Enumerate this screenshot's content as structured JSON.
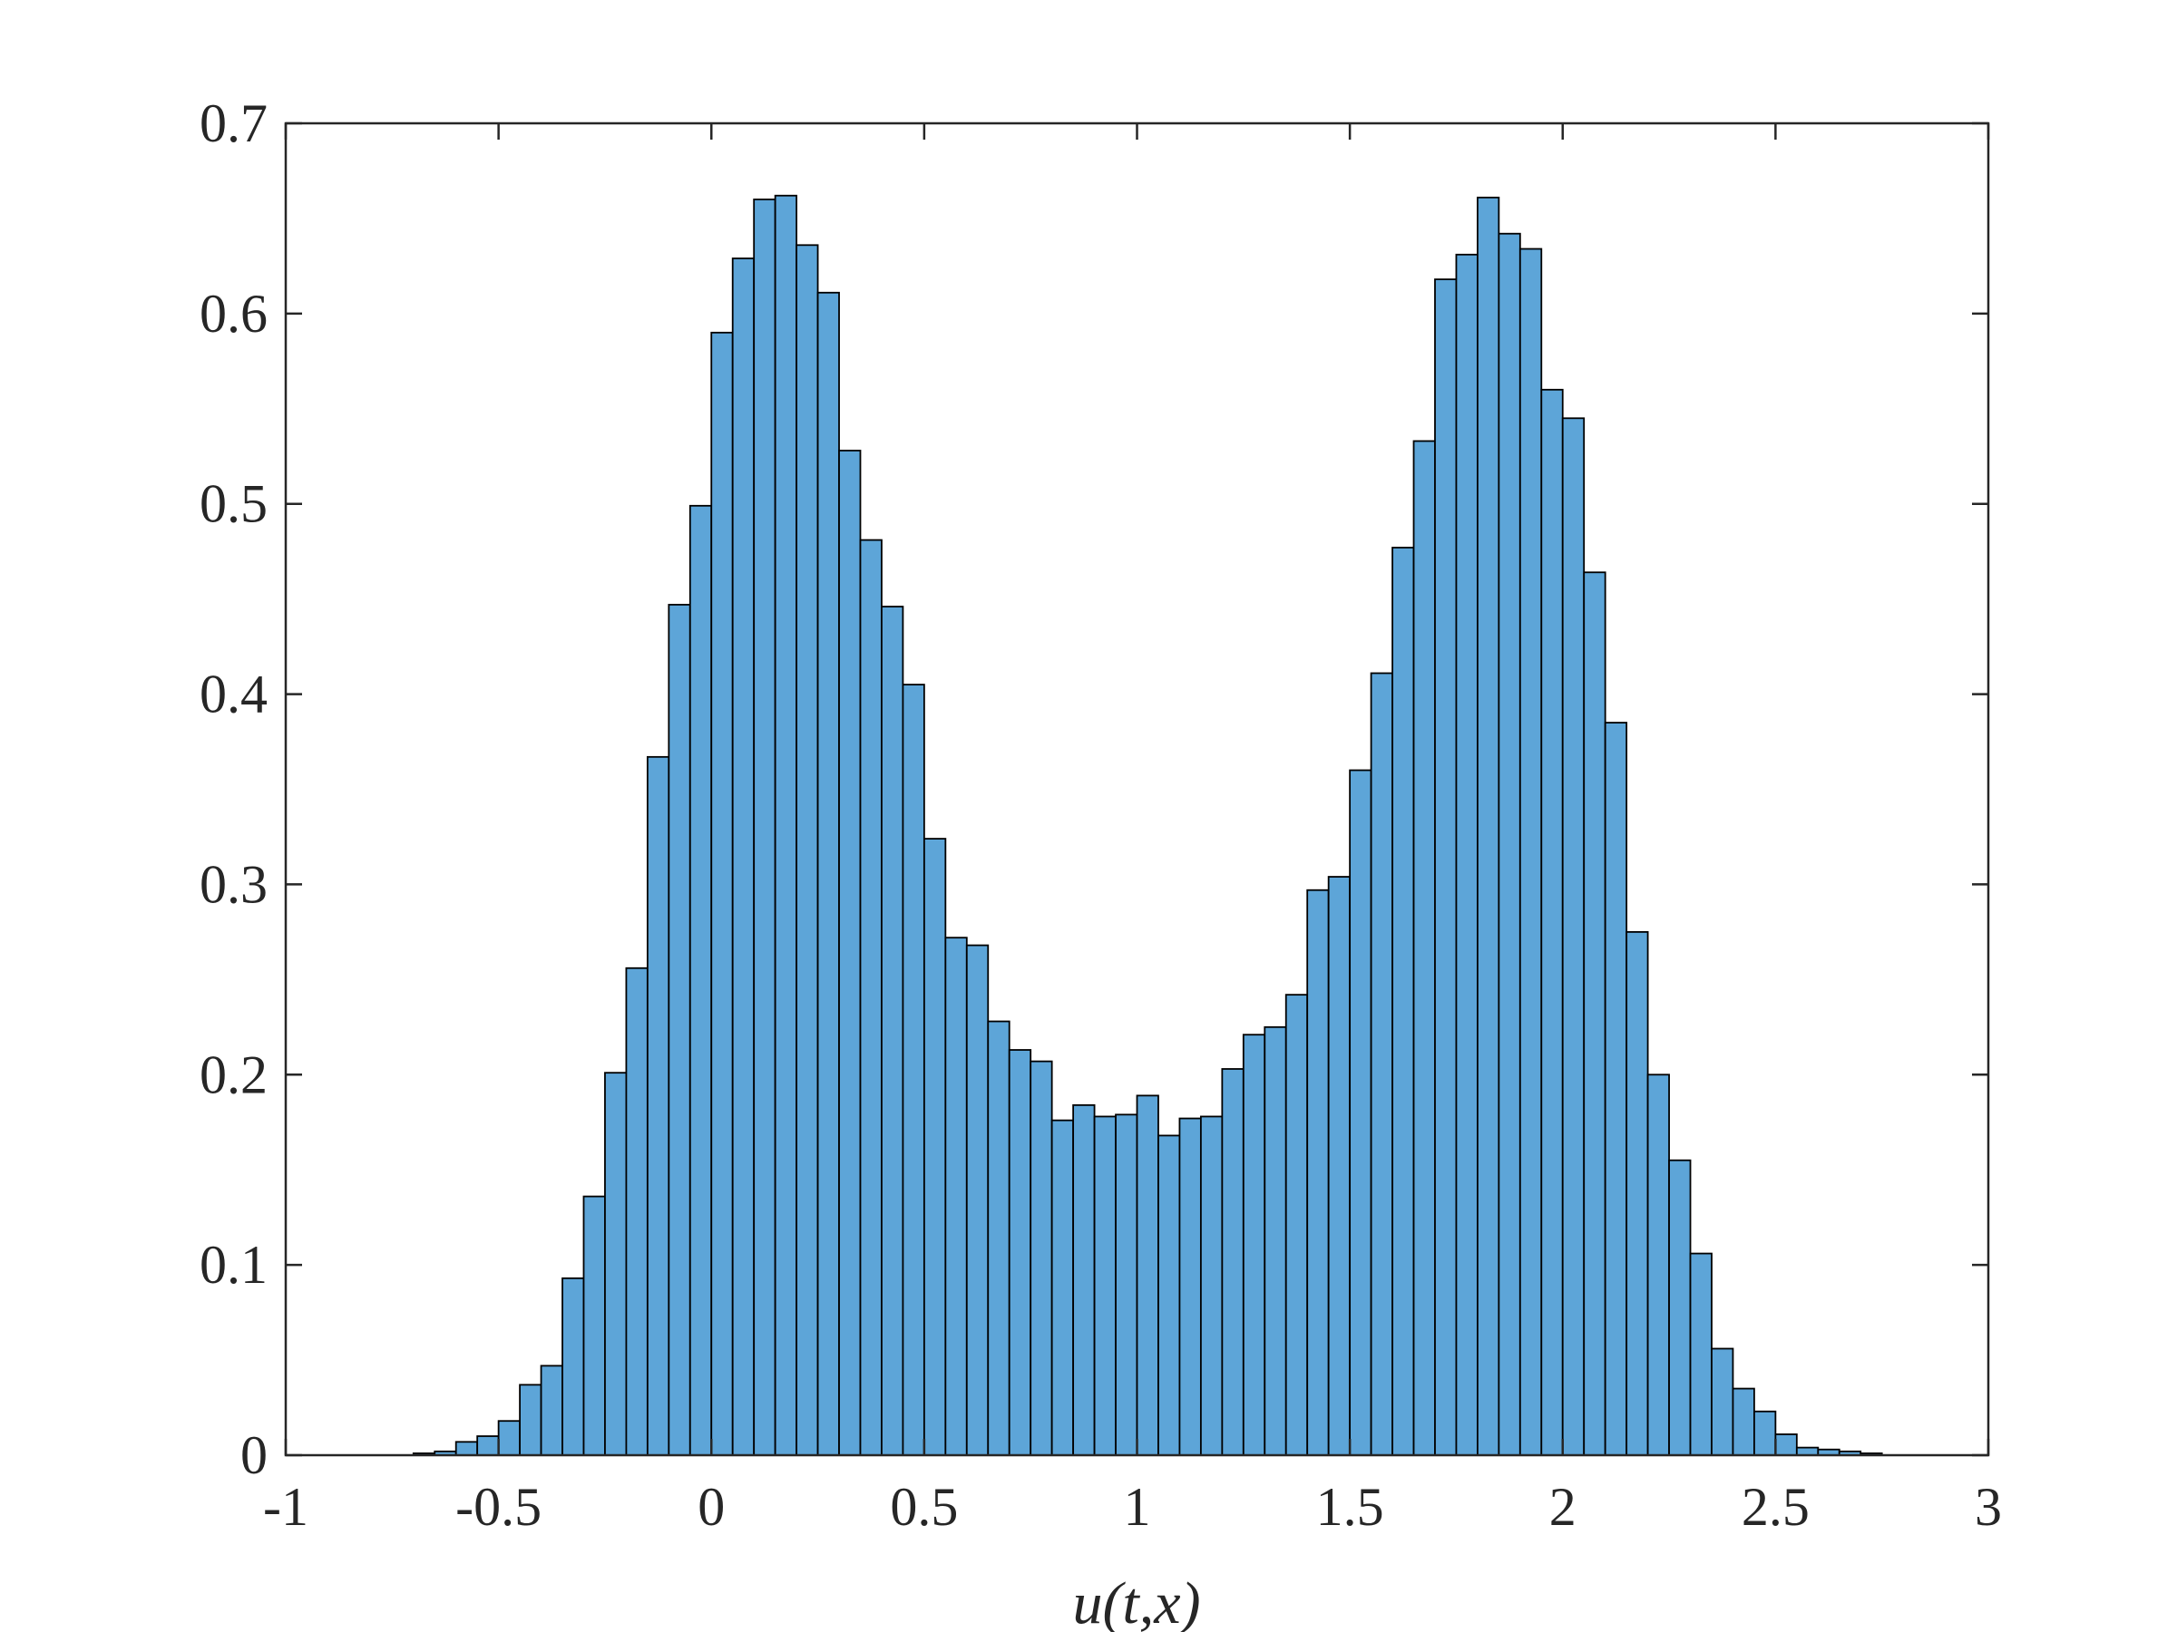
{
  "chart_data": {
    "type": "histogram",
    "xlabel": "u(t,x)",
    "bins": [
      -1,
      -0.95,
      -0.9,
      -0.85,
      -0.8,
      -0.75,
      -0.7,
      -0.65,
      -0.6,
      -0.55,
      -0.5,
      -0.45,
      -0.4,
      -0.35,
      -0.3,
      -0.25,
      -0.2,
      -0.15,
      -0.1,
      -0.05,
      0,
      0.05,
      0.1,
      0.15,
      0.2,
      0.25,
      0.3,
      0.35,
      0.4,
      0.45,
      0.5,
      0.55,
      0.6,
      0.65,
      0.7,
      0.75,
      0.8,
      0.85,
      0.9,
      0.95,
      1,
      1.05,
      1.1,
      1.15,
      1.2,
      1.25,
      1.3,
      1.35,
      1.4,
      1.45,
      1.5,
      1.55,
      1.6,
      1.65,
      1.7,
      1.75,
      1.8,
      1.85,
      1.9,
      1.95,
      2,
      2.05,
      2.1,
      2.15,
      2.2,
      2.25,
      2.3,
      2.35,
      2.4,
      2.45,
      2.5,
      2.55,
      2.6,
      2.65,
      2.7,
      2.75,
      2.8,
      2.85,
      2.9,
      2.95,
      3
    ],
    "values": [
      0,
      0,
      0,
      0,
      0,
      0,
      0.001,
      0.002,
      0.007,
      0.01,
      0.018,
      0.037,
      0.047,
      0.093,
      0.136,
      0.201,
      0.256,
      0.367,
      0.447,
      0.499,
      0.59,
      0.629,
      0.66,
      0.662,
      0.636,
      0.611,
      0.528,
      0.481,
      0.446,
      0.405,
      0.324,
      0.272,
      0.268,
      0.228,
      0.213,
      0.207,
      0.176,
      0.184,
      0.178,
      0.179,
      0.189,
      0.168,
      0.177,
      0.178,
      0.203,
      0.221,
      0.225,
      0.242,
      0.297,
      0.304,
      0.36,
      0.411,
      0.477,
      0.533,
      0.618,
      0.631,
      0.661,
      0.642,
      0.634,
      0.56,
      0.545,
      0.464,
      0.385,
      0.275,
      0.2,
      0.155,
      0.106,
      0.056,
      0.035,
      0.023,
      0.011,
      0.004,
      0.003,
      0.002,
      0.001,
      0,
      0,
      0,
      0,
      0
    ],
    "color": "#5da5d8",
    "xlim": [
      -1,
      3
    ],
    "xticks": [
      -1,
      -0.5,
      0,
      0.5,
      1,
      1.5,
      2,
      2.5,
      3
    ],
    "ylim": [
      0,
      0.7
    ],
    "yticks": [
      0,
      0.1,
      0.2,
      0.3,
      0.4,
      0.5,
      0.6,
      0.7
    ]
  }
}
